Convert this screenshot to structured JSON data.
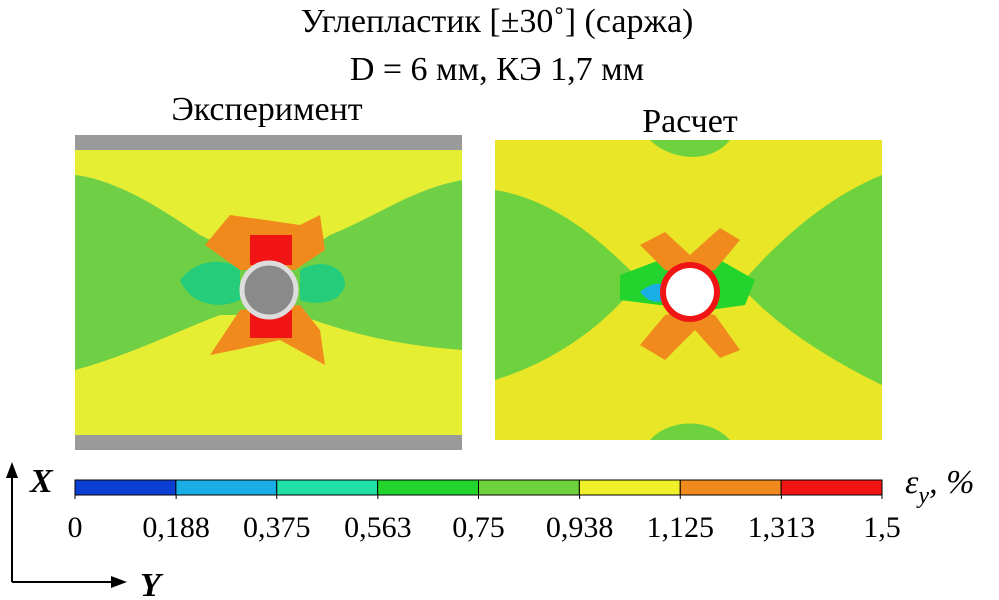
{
  "header": {
    "line1": "Углепластик [±30˚] (саржа)",
    "line2": "D = 6 мм, КЭ 1,7 мм"
  },
  "panels": [
    {
      "label": "Эксперимент"
    },
    {
      "label": "Расчет"
    }
  ],
  "colorbar": {
    "range": [
      0,
      1.5
    ],
    "colors": [
      "#0b3fd4",
      "#1aaee6",
      "#20e0a6",
      "#22d42c",
      "#6ed23e",
      "#f0f02a",
      "#f08a1c",
      "#f01414"
    ],
    "ticks": [
      0,
      {
        "value": 0.188,
        "label": "0,188"
      },
      {
        "value": 0.375,
        "label": "0,375"
      },
      {
        "value": 0.563,
        "label": "0,563"
      },
      {
        "value": 0.75,
        "label": "0,75"
      },
      {
        "value": 0.938,
        "label": "0,938"
      },
      {
        "value": 1.125,
        "label": "1,125"
      },
      {
        "value": 1.313,
        "label": "1,313"
      },
      {
        "value": 1.5,
        "label": "1,5"
      }
    ],
    "symbol": "ε",
    "subscript": "y",
    "unit": ", %"
  },
  "axes": {
    "x": "X",
    "y": "Y"
  }
}
